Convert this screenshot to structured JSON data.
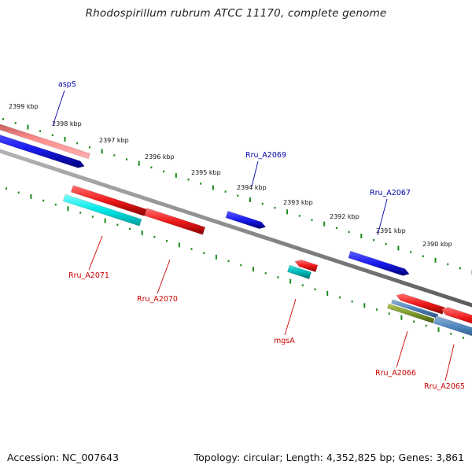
{
  "title": "Rhodospirillum rubrum ATCC 11170, complete genome",
  "footer": {
    "accession": "Accession: NC_007643",
    "summary": "Topology: circular; Length: 4,352,825 bp; Genes: 3,861"
  },
  "colors": {
    "backbone": "#8c8c8c",
    "tick": "#1a8a1a",
    "forward_gene": "#1a1aee",
    "reverse_gene": "#ee1a1a",
    "label_forward": "#0000aa",
    "label_reverse": "#cc0000"
  },
  "scale_ticks": [
    {
      "label": "2399 kbp"
    },
    {
      "label": "2398 kbp"
    },
    {
      "label": "2397 kbp"
    },
    {
      "label": "2396 kbp"
    },
    {
      "label": "2395 kbp"
    },
    {
      "label": "2394 kbp"
    },
    {
      "label": "2393 kbp"
    },
    {
      "label": "2392 kbp"
    },
    {
      "label": "2391 kbp"
    },
    {
      "label": "2390 kbp"
    }
  ],
  "gene_labels": [
    {
      "name": "aspS",
      "strand": "forward"
    },
    {
      "name": "Rru_A2069",
      "strand": "forward"
    },
    {
      "name": "Rru_A2067",
      "strand": "forward"
    },
    {
      "name": "Rru_A2071",
      "strand": "reverse"
    },
    {
      "name": "Rru_A2070",
      "strand": "reverse"
    },
    {
      "name": "mgsA",
      "strand": "reverse"
    },
    {
      "name": "Rru_A2066",
      "strand": "reverse"
    },
    {
      "name": "Rru_A2065",
      "strand": "reverse"
    }
  ]
}
